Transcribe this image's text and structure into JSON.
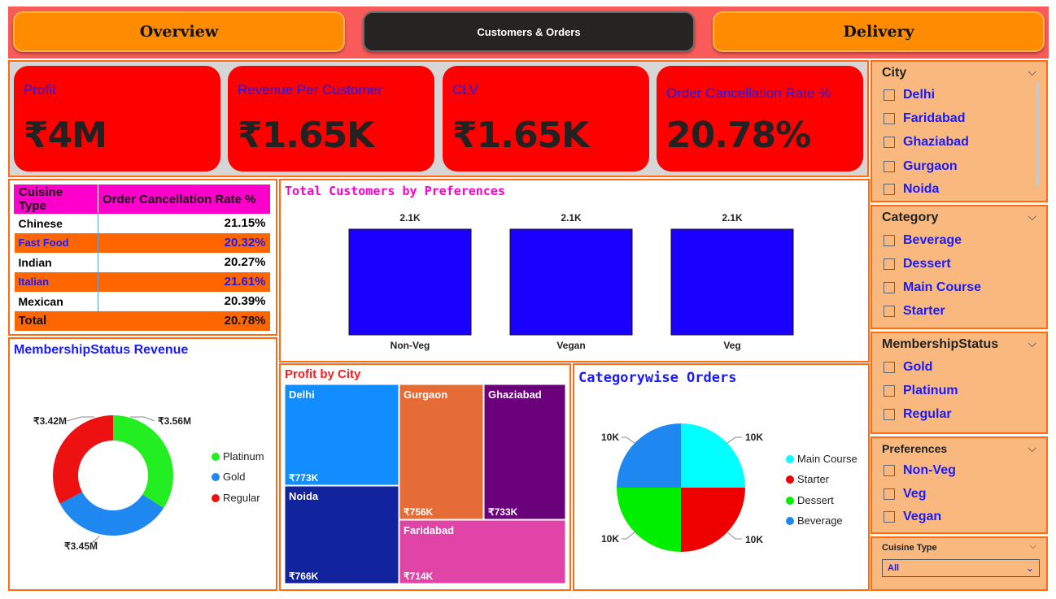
{
  "nav": {
    "overview": "Overview",
    "customers_orders": "Customers & Orders",
    "delivery": "Delivery"
  },
  "kpis": [
    {
      "label": "Profit",
      "value": "₹4M"
    },
    {
      "label": "Revenue Per Customer",
      "value": "₹1.65K"
    },
    {
      "label": "CLV",
      "value": "₹1.65K"
    },
    {
      "label": "Order Cancellation Rate %",
      "value": "20.78%"
    }
  ],
  "cuisine_table": {
    "headers": [
      "Cuisine Type",
      "Order Cancellation Rate %"
    ],
    "rows": [
      {
        "name": "Chinese",
        "value": "21.15%"
      },
      {
        "name": "Fast Food",
        "value": "20.32%"
      },
      {
        "name": "Indian",
        "value": "20.27%"
      },
      {
        "name": "Italian",
        "value": "21.61%"
      },
      {
        "name": "Mexican",
        "value": "20.39%"
      }
    ],
    "total": {
      "name": "Total",
      "value": "20.78%"
    }
  },
  "preferences_chart": {
    "title": "Total Customers by Preferences",
    "bars": [
      {
        "category": "Non-Veg",
        "label": "2.1K",
        "value": 2100
      },
      {
        "category": "Vegan",
        "label": "2.1K",
        "value": 2100
      },
      {
        "category": "Veg",
        "label": "2.1K",
        "value": 2100
      }
    ],
    "color": "#1a00ff"
  },
  "membership_chart": {
    "title": "MembershipStatus Revenue",
    "slices": [
      {
        "name": "Platinum",
        "label": "₹3.56M",
        "value": 3.56,
        "color": "#22ee22"
      },
      {
        "name": "Gold",
        "label": "₹3.45M",
        "value": 3.45,
        "color": "#1e88f0"
      },
      {
        "name": "Regular",
        "label": "₹3.42M",
        "value": 3.42,
        "color": "#ee1111"
      }
    ]
  },
  "profit_city": {
    "title": "Profit by City",
    "cells": [
      {
        "city": "Delhi",
        "label": "₹773K",
        "color": "#118dff"
      },
      {
        "city": "Noida",
        "label": "₹766K",
        "color": "#12239e"
      },
      {
        "city": "Gurgaon",
        "label": "₹756K",
        "color": "#e66c37"
      },
      {
        "city": "Ghaziabad",
        "label": "₹733K",
        "color": "#6b007b"
      },
      {
        "city": "Faridabad",
        "label": "₹714K",
        "color": "#e044a7"
      }
    ]
  },
  "category_orders": {
    "title": "Categorywise Orders",
    "slices": [
      {
        "name": "Main Course",
        "label": "10K",
        "value": 10,
        "color": "#00ffff"
      },
      {
        "name": "Starter",
        "label": "10K",
        "value": 10,
        "color": "#ee0000"
      },
      {
        "name": "Dessert",
        "label": "10K",
        "value": 10,
        "color": "#00ee00"
      },
      {
        "name": "Beverage",
        "label": "10K",
        "value": 10,
        "color": "#1e88f0"
      }
    ]
  },
  "slicers": {
    "city": {
      "title": "City",
      "options": [
        "Delhi",
        "Faridabad",
        "Ghaziabad",
        "Gurgaon",
        "Noida"
      ]
    },
    "category": {
      "title": "Category",
      "options": [
        "Beverage",
        "Dessert",
        "Main Course",
        "Starter"
      ]
    },
    "membership": {
      "title": "MembershipStatus",
      "options": [
        "Gold",
        "Platinum",
        "Regular"
      ]
    },
    "preferences": {
      "title": "Preferences",
      "options": [
        "Non-Veg",
        "Veg",
        "Vegan"
      ]
    },
    "cuisine": {
      "title": "Cuisine Type",
      "selected": "All"
    }
  },
  "colors": {
    "accent_orange": "#ff6a13",
    "kpi_red": "#ff0000",
    "label_blue": "#1a1aff",
    "slicer_bg": "#f9b97e"
  }
}
